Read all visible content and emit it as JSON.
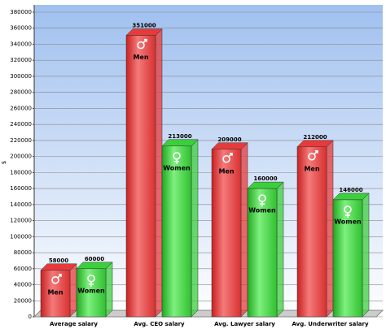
{
  "chart_data": {
    "type": "bar3d",
    "y_label": "$",
    "categories": [
      "Average salary",
      "Avg. CEO salary",
      "Avg. Lawyer salary",
      "Avg. Underwriter salary"
    ],
    "series": [
      {
        "name": "Men",
        "color": "#e83a3a",
        "values": [
          58000,
          351000,
          209000,
          212000
        ]
      },
      {
        "name": "Women",
        "color": "#3ccf3c",
        "values": [
          60000,
          213000,
          160000,
          146000
        ]
      }
    ],
    "ylim": [
      0,
      380000
    ],
    "yticks": [
      0,
      20000,
      40000,
      60000,
      80000,
      100000,
      120000,
      140000,
      160000,
      180000,
      200000,
      220000,
      240000,
      260000,
      280000,
      300000,
      320000,
      340000,
      360000,
      380000
    ],
    "grid": true
  }
}
